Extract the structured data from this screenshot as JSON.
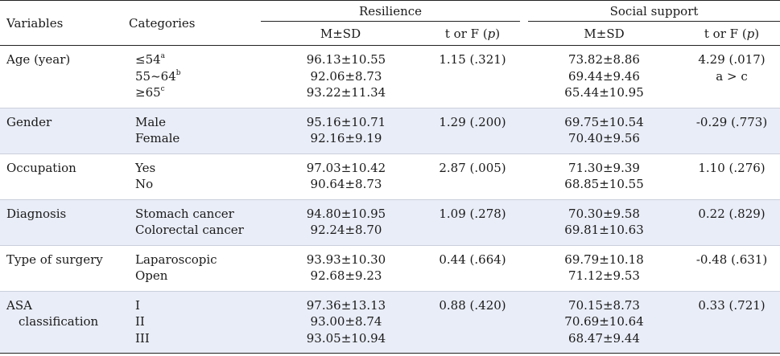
{
  "headers": {
    "variables": "Variables",
    "categories": "Categories",
    "resilience": "Resilience",
    "social_support": "Social support",
    "msd": "M±SD",
    "t_or_f_prefix": "t or F (",
    "p": "p",
    "t_or_f_suffix": ")"
  },
  "rows": [
    {
      "variable": "Age (year)",
      "categories": [
        "≤54",
        "55~64",
        "≥65"
      ],
      "category_sups": [
        "a",
        "b",
        "c"
      ],
      "res_msd": [
        "96.13±10.55",
        "92.06±8.73",
        "93.22±11.34"
      ],
      "res_stat": "1.15 (.321)",
      "soc_msd": [
        "73.82±8.86",
        "69.44±9.46",
        "65.44±10.95"
      ],
      "soc_stat": "4.29 (.017)",
      "soc_stat_note": "a > c"
    },
    {
      "variable": "Gender",
      "categories": [
        "Male",
        "Female"
      ],
      "res_msd": [
        "95.16±10.71",
        "92.16±9.19"
      ],
      "res_stat": "1.29 (.200)",
      "soc_msd": [
        "69.75±10.54",
        "70.40±9.56"
      ],
      "soc_stat": "-0.29 (.773)"
    },
    {
      "variable": "Occupation",
      "categories": [
        "Yes",
        "No"
      ],
      "res_msd": [
        "97.03±10.42",
        "90.64±8.73"
      ],
      "res_stat": "2.87 (.005)",
      "soc_msd": [
        "71.30±9.39",
        "68.85±10.55"
      ],
      "soc_stat": "1.10 (.276)"
    },
    {
      "variable": "Diagnosis",
      "categories": [
        "Stomach cancer",
        "Colorectal cancer"
      ],
      "res_msd": [
        "94.80±10.95",
        "92.24±8.70"
      ],
      "res_stat": "1.09 (.278)",
      "soc_msd": [
        "70.30±9.58",
        "69.81±10.63"
      ],
      "soc_stat": "0.22 (.829)"
    },
    {
      "variable": "Type of surgery",
      "categories": [
        "Laparoscopic",
        "Open"
      ],
      "res_msd": [
        "93.93±10.30",
        "92.68±9.23"
      ],
      "res_stat": "0.44 (.664)",
      "soc_msd": [
        "69.79±10.18",
        "71.12±9.53"
      ],
      "soc_stat": "-0.48 (.631)"
    },
    {
      "variable_lines": [
        "ASA",
        "classification"
      ],
      "categories": [
        "I",
        "II",
        "III"
      ],
      "res_msd": [
        "97.36±13.13",
        "93.00±8.74",
        "93.05±10.94"
      ],
      "res_stat": "0.88 (.420)",
      "soc_msd": [
        "70.15±8.73",
        "70.69±10.64",
        "68.47±9.44"
      ],
      "soc_stat": "0.33 (.721)"
    }
  ]
}
